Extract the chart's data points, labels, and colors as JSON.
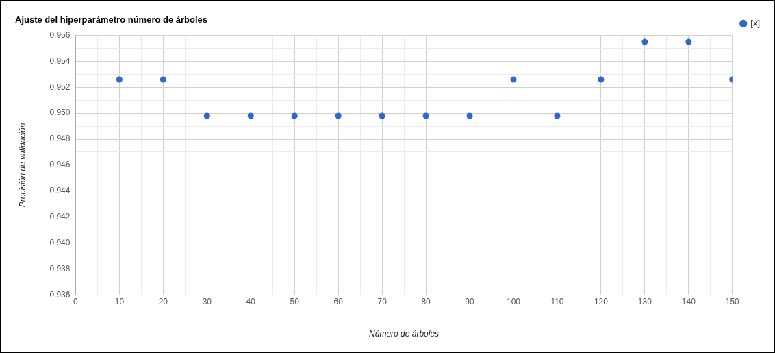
{
  "chart_data": {
    "type": "scatter",
    "title": "Ajuste del hiperparámetro número de árboles",
    "xlabel": "Número de árboles",
    "ylabel": "Precisión de validación",
    "x": [
      10,
      20,
      30,
      40,
      50,
      60,
      70,
      80,
      90,
      100,
      110,
      120,
      130,
      140,
      150
    ],
    "series": [
      {
        "name": "[x]",
        "color": "#3366cc",
        "values": [
          0.9526,
          0.9526,
          0.9498,
          0.9498,
          0.9498,
          0.9498,
          0.9498,
          0.9498,
          0.9498,
          0.9526,
          0.9498,
          0.9526,
          0.9555,
          0.9555,
          0.9526
        ]
      }
    ],
    "xlim": [
      0,
      150
    ],
    "xticks": [
      0,
      {
        "value": 5,
        "label": null
      },
      10,
      {
        "value": 15,
        "label": null
      },
      20,
      {
        "value": 25,
        "label": null
      },
      30,
      {
        "value": 35,
        "label": null
      },
      40,
      {
        "value": 45,
        "label": null
      },
      50,
      {
        "value": 55,
        "label": null
      },
      60,
      {
        "value": 65,
        "label": null
      },
      70,
      {
        "value": 75,
        "label": null
      },
      80,
      {
        "value": 85,
        "label": null
      },
      90,
      {
        "value": 95,
        "label": null
      },
      100,
      {
        "value": 105,
        "label": null
      },
      110,
      {
        "value": 115,
        "label": null
      },
      120,
      {
        "value": 125,
        "label": null
      },
      130,
      {
        "value": 135,
        "label": null
      },
      140,
      {
        "value": 145,
        "label": null
      },
      150
    ],
    "ylim": [
      0.936,
      0.956
    ],
    "yticks": [
      0.936,
      {
        "value": 0.937,
        "label": null
      },
      0.938,
      {
        "value": 0.939,
        "label": null
      },
      {
        "value": 0.94,
        "label": "0.940"
      },
      {
        "value": 0.941,
        "label": null
      },
      0.942,
      {
        "value": 0.943,
        "label": null
      },
      0.944,
      {
        "value": 0.945,
        "label": null
      },
      0.946,
      {
        "value": 0.947,
        "label": null
      },
      0.948,
      {
        "value": 0.949,
        "label": null
      },
      {
        "value": 0.95,
        "label": "0.950"
      },
      {
        "value": 0.951,
        "label": null
      },
      0.952,
      {
        "value": 0.953,
        "label": null
      },
      0.954,
      {
        "value": 0.955,
        "label": null
      },
      0.956
    ],
    "grid": true,
    "legend": "top right",
    "marker": "circle"
  }
}
